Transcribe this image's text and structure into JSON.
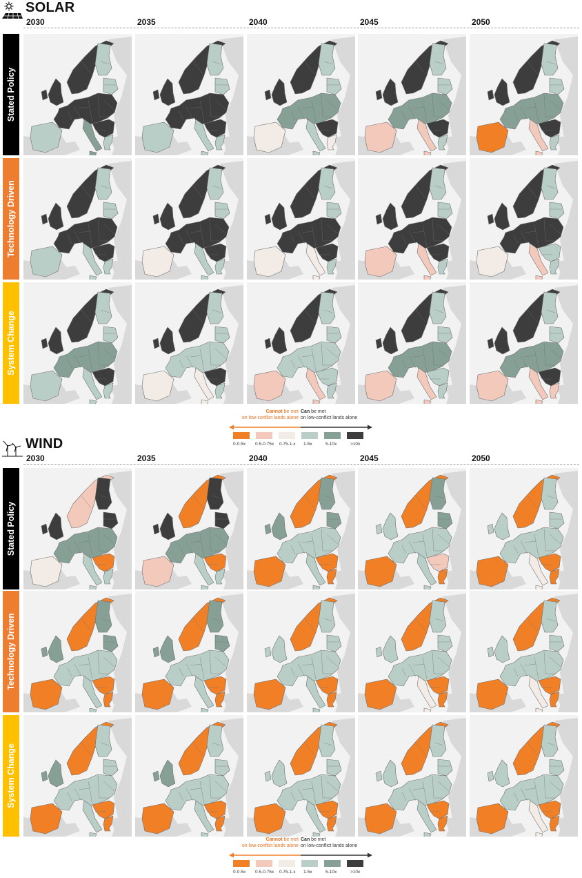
{
  "solar": {
    "title": "SOLAR",
    "icon": "solar-panel-icon",
    "years": [
      "2030",
      "2035",
      "2040",
      "2045",
      "2050"
    ],
    "scenarios": [
      {
        "label": "Stated Policy",
        "color": "#000000"
      },
      {
        "label": "Technology Driven",
        "color": "#ed7d31"
      },
      {
        "label": "System Change",
        "color": "#ffc000"
      }
    ]
  },
  "wind": {
    "title": "WIND",
    "icon": "wind-turbine-icon",
    "years": [
      "2030",
      "2035",
      "2040",
      "2045",
      "2050"
    ],
    "scenarios": [
      {
        "label": "Stated Policy",
        "color": "#000000"
      },
      {
        "label": "Technology Driven",
        "color": "#ed7d31"
      },
      {
        "label": "System Change",
        "color": "#ffc000"
      }
    ]
  },
  "legend": {
    "cannot_bold": "Cannot",
    "cannot_rest": " be met",
    "cannot_line2": "on low-conflict lands alone",
    "can_bold": "Can",
    "can_rest": " be met",
    "can_line2": "on low-conflict lands alone",
    "classes": [
      {
        "label": "0-0.5x",
        "color": "#f07f26"
      },
      {
        "label": "0.5-0.75x",
        "color": "#f2c9bb"
      },
      {
        "label": "0.75-1.x",
        "color": "#f3ebe6"
      },
      {
        "label": "1-5x",
        "color": "#b9cec7"
      },
      {
        "label": "5-10x",
        "color": "#87a096"
      },
      {
        "label": ">10x",
        "color": "#3d3d3d"
      }
    ]
  },
  "map_colors": {
    "background": "#f2f2f2",
    "non_eu": "#d9d9d9",
    "border": "#6f6f6f"
  },
  "map_data": {
    "solar": [
      [
        {
          "north": 5,
          "east": 3,
          "brit": 5,
          "core": 5,
          "iberia": 3,
          "italy": 4,
          "balkans": 5,
          "greece": 3
        },
        {
          "north": 5,
          "east": 3,
          "brit": 5,
          "core": 5,
          "iberia": 3,
          "italy": 3,
          "balkans": 5,
          "greece": 3
        },
        {
          "north": 5,
          "east": 3,
          "brit": 5,
          "core": 4,
          "iberia": 2,
          "italy": 3,
          "balkans": 5,
          "greece": 2
        },
        {
          "north": 5,
          "east": 3,
          "brit": 5,
          "core": 4,
          "iberia": 1,
          "italy": 1,
          "balkans": 5,
          "greece": 3
        },
        {
          "north": 5,
          "east": 3,
          "brit": 5,
          "core": 4,
          "iberia": 0,
          "italy": 1,
          "balkans": 5,
          "greece": 3
        }
      ],
      [
        {
          "north": 5,
          "east": 3,
          "brit": 5,
          "core": 5,
          "iberia": 3,
          "italy": 3,
          "balkans": 5,
          "greece": 3
        },
        {
          "north": 5,
          "east": 3,
          "brit": 5,
          "core": 5,
          "iberia": 2,
          "italy": 3,
          "balkans": 5,
          "greece": 3
        },
        {
          "north": 5,
          "east": 3,
          "brit": 5,
          "core": 5,
          "iberia": 2,
          "italy": 2,
          "balkans": 5,
          "greece": 3
        },
        {
          "north": 5,
          "east": 3,
          "brit": 5,
          "core": 5,
          "iberia": 1,
          "italy": 1,
          "balkans": 5,
          "greece": 3
        },
        {
          "north": 5,
          "east": 3,
          "brit": 5,
          "core": 5,
          "iberia": 2,
          "italy": 1,
          "balkans": 3,
          "greece": 3
        }
      ],
      [
        {
          "north": 5,
          "east": 3,
          "brit": 5,
          "core": 4,
          "iberia": 3,
          "italy": 3,
          "balkans": 5,
          "greece": 3
        },
        {
          "north": 5,
          "east": 3,
          "brit": 5,
          "core": 3,
          "iberia": 2,
          "italy": 2,
          "balkans": 5,
          "greece": 3
        },
        {
          "north": 5,
          "east": 3,
          "brit": 5,
          "core": 3,
          "iberia": 1,
          "italy": 1,
          "balkans": 3,
          "greece": 3
        },
        {
          "north": 5,
          "east": 3,
          "brit": 5,
          "core": 4,
          "iberia": 1,
          "italy": 1,
          "balkans": 3,
          "greece": 3
        },
        {
          "north": 5,
          "east": 3,
          "brit": 5,
          "core": 4,
          "iberia": 1,
          "italy": 1,
          "balkans": 5,
          "greece": 1
        }
      ]
    ],
    "wind": [
      [
        {
          "north": 1,
          "east": 5,
          "brit": 5,
          "core": 4,
          "iberia": 2,
          "italy": 3,
          "balkans": 0,
          "greece": 3
        },
        {
          "north": 0,
          "east": 5,
          "brit": 5,
          "core": 4,
          "iberia": 1,
          "italy": 3,
          "balkans": 0,
          "greece": 3
        },
        {
          "north": 0,
          "east": 4,
          "brit": 4,
          "core": 3,
          "iberia": 0,
          "italy": 3,
          "balkans": 0,
          "greece": 0
        },
        {
          "north": 0,
          "east": 4,
          "brit": 3,
          "core": 3,
          "iberia": 0,
          "italy": 3,
          "balkans": 1,
          "greece": 0
        },
        {
          "north": 0,
          "east": 3,
          "brit": 3,
          "core": 3,
          "iberia": 0,
          "italy": 2,
          "balkans": 0,
          "greece": 0
        }
      ],
      [
        {
          "north": 0,
          "east": 4,
          "brit": 4,
          "core": 3,
          "iberia": 0,
          "italy": 3,
          "balkans": 0,
          "greece": 0
        },
        {
          "north": 0,
          "east": 4,
          "brit": 4,
          "core": 3,
          "iberia": 0,
          "italy": 3,
          "balkans": 0,
          "greece": 0
        },
        {
          "north": 0,
          "east": 3,
          "brit": 3,
          "core": 3,
          "iberia": 0,
          "italy": 3,
          "balkans": 0,
          "greece": 0
        },
        {
          "north": 0,
          "east": 3,
          "brit": 3,
          "core": 3,
          "iberia": 0,
          "italy": 2,
          "balkans": 0,
          "greece": 0
        },
        {
          "north": 0,
          "east": 3,
          "brit": 3,
          "core": 3,
          "iberia": 0,
          "italy": 2,
          "balkans": 0,
          "greece": 0
        }
      ],
      [
        {
          "north": 0,
          "east": 3,
          "brit": 4,
          "core": 3,
          "iberia": 0,
          "italy": 3,
          "balkans": 0,
          "greece": 0
        },
        {
          "north": 0,
          "east": 3,
          "brit": 4,
          "core": 3,
          "iberia": 0,
          "italy": 3,
          "balkans": 0,
          "greece": 0
        },
        {
          "north": 0,
          "east": 3,
          "brit": 3,
          "core": 3,
          "iberia": 0,
          "italy": 3,
          "balkans": 0,
          "greece": 0
        },
        {
          "north": 0,
          "east": 3,
          "brit": 3,
          "core": 3,
          "iberia": 0,
          "italy": 3,
          "balkans": 0,
          "greece": 0
        },
        {
          "north": 0,
          "east": 3,
          "brit": 3,
          "core": 3,
          "iberia": 0,
          "italy": 2,
          "balkans": 0,
          "greece": 0
        }
      ]
    ]
  }
}
